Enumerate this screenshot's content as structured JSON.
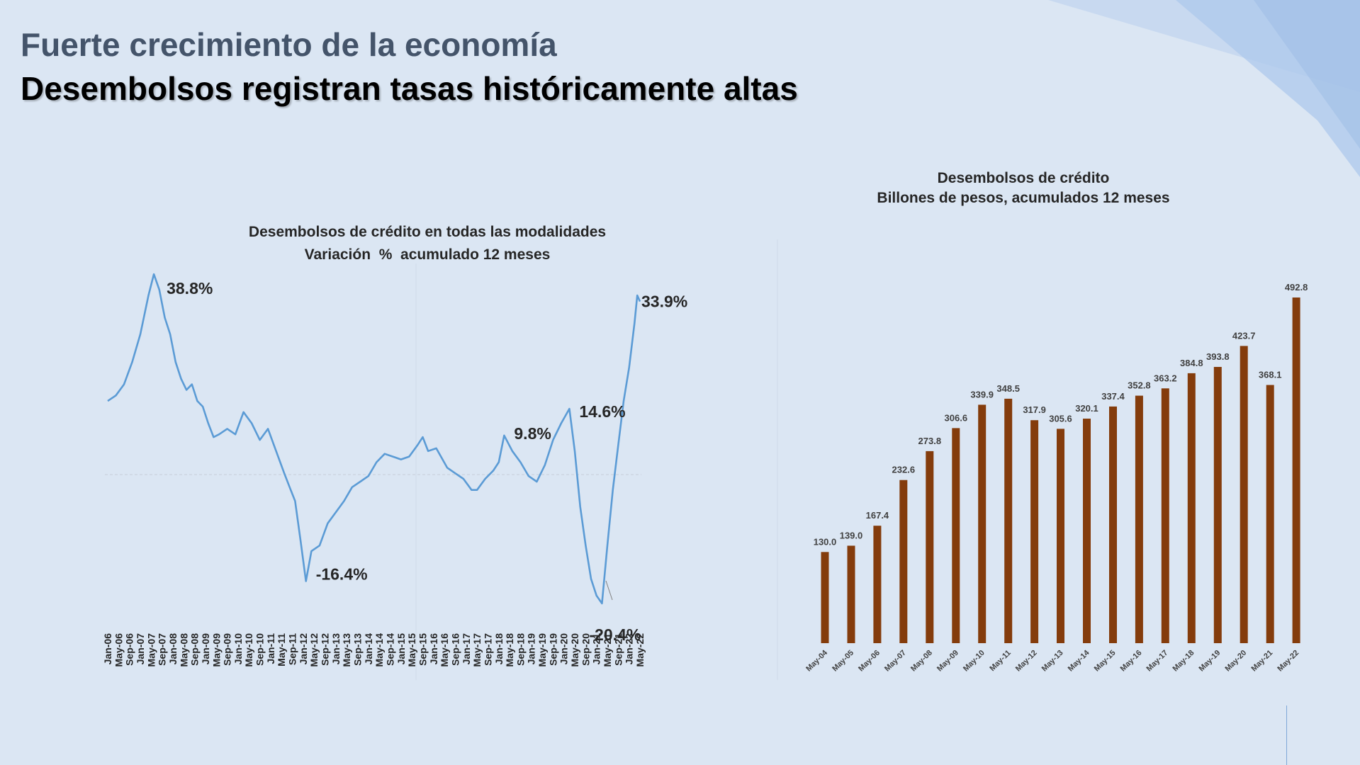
{
  "header": {
    "title": "Fuerte crecimiento de la economía",
    "subtitle": "Desembolsos registran tasas históricamente altas"
  },
  "colors": {
    "line": "#5b9bd5",
    "bar": "#843c0c",
    "title": "#44546a",
    "background": "#dbe6f3"
  },
  "chart_data": [
    {
      "type": "line",
      "title": "Desembolsos de crédito en todas las modalidades",
      "subtitle": "Variación  %  acumulado 12 meses",
      "x_start": "Jan-06",
      "x_end": "May-22",
      "x_ticks": [
        "Jan-06",
        "May-06",
        "Sep-06",
        "Jan-07",
        "May-07",
        "Sep-07",
        "Jan-08",
        "May-08",
        "Sep-08",
        "Jan-09",
        "May-09",
        "Sep-09",
        "Jan-10",
        "May-10",
        "Sep-10",
        "Jan-11",
        "May-11",
        "Sep-11",
        "Jan-12",
        "May-12",
        "Sep-12",
        "Jan-13",
        "May-13",
        "Sep-13",
        "Jan-14",
        "May-14",
        "Sep-14",
        "Jan-15",
        "May-15",
        "Sep-15",
        "Jan-16",
        "May-16",
        "Sep-16",
        "Jan-17",
        "May-17",
        "Sep-17",
        "Jan-18",
        "May-18",
        "Sep-18",
        "Jan-19",
        "May-19",
        "Sep-19",
        "Jan-20",
        "May-20",
        "Sep-20",
        "Jan-21",
        "May-21",
        "Sep-21",
        "Jan-22",
        "May-22"
      ],
      "ylim": [
        -25,
        42
      ],
      "grid": false,
      "legend": false,
      "series": [
        {
          "points": [
            [
              "Jan-06",
              16
            ],
            [
              "Apr-06",
              17
            ],
            [
              "Jul-06",
              19
            ],
            [
              "Oct-06",
              23
            ],
            [
              "Jan-07",
              28
            ],
            [
              "Apr-07",
              35
            ],
            [
              "Jun-07",
              38.8
            ],
            [
              "Aug-07",
              36
            ],
            [
              "Oct-07",
              31
            ],
            [
              "Dec-07",
              28
            ],
            [
              "Feb-08",
              23
            ],
            [
              "Apr-08",
              20
            ],
            [
              "Jun-08",
              18
            ],
            [
              "Aug-08",
              19
            ],
            [
              "Oct-08",
              16
            ],
            [
              "Dec-08",
              15
            ],
            [
              "Feb-09",
              12
            ],
            [
              "Apr-09",
              9.5
            ],
            [
              "Jun-09",
              10
            ],
            [
              "Sep-09",
              11
            ],
            [
              "Dec-09",
              10
            ],
            [
              "Mar-10",
              14
            ],
            [
              "Jun-10",
              12
            ],
            [
              "Sep-10",
              9
            ],
            [
              "Dec-10",
              11
            ],
            [
              "Mar-11",
              7
            ],
            [
              "Jun-11",
              3
            ],
            [
              "Aug-11",
              0.5
            ],
            [
              "Oct-11",
              -2
            ],
            [
              "Dec-11",
              -9
            ],
            [
              "Feb-12",
              -16.4
            ],
            [
              "Apr-12",
              -11
            ],
            [
              "Jul-12",
              -10
            ],
            [
              "Oct-12",
              -6
            ],
            [
              "Jan-13",
              -4
            ],
            [
              "Apr-13",
              -2
            ],
            [
              "Jul-13",
              0.5
            ],
            [
              "Oct-13",
              1.5
            ],
            [
              "Jan-14",
              2.5
            ],
            [
              "Apr-14",
              5
            ],
            [
              "Jul-14",
              6.5
            ],
            [
              "Oct-14",
              6
            ],
            [
              "Jan-15",
              5.5
            ],
            [
              "Apr-15",
              6
            ],
            [
              "Jul-15",
              8
            ],
            [
              "Sep-15",
              9.5
            ],
            [
              "Nov-15",
              7
            ],
            [
              "Feb-16",
              7.5
            ],
            [
              "Jun-16",
              4
            ],
            [
              "Sep-16",
              3
            ],
            [
              "Dec-16",
              2
            ],
            [
              "Mar-17",
              0
            ],
            [
              "May-17",
              0
            ],
            [
              "Aug-17",
              2
            ],
            [
              "Nov-17",
              3.5
            ],
            [
              "Jan-18",
              5
            ],
            [
              "Mar-18",
              9.8
            ],
            [
              "Jun-18",
              7
            ],
            [
              "Sep-18",
              5
            ],
            [
              "Dec-18",
              2.5
            ],
            [
              "Mar-19",
              1.5
            ],
            [
              "Jun-19",
              4.5
            ],
            [
              "Sep-19",
              9
            ],
            [
              "Dec-19",
              12
            ],
            [
              "Mar-20",
              14.6
            ],
            [
              "May-20",
              7
            ],
            [
              "Jul-20",
              -3
            ],
            [
              "Sep-20",
              -10
            ],
            [
              "Nov-20",
              -16
            ],
            [
              "Jan-21",
              -19
            ],
            [
              "Mar-21",
              -20.4
            ],
            [
              "May-21",
              -10
            ],
            [
              "Jul-21",
              0
            ],
            [
              "Sep-21",
              8
            ],
            [
              "Nov-21",
              16
            ],
            [
              "Jan-22",
              22
            ],
            [
              "Mar-22",
              30
            ],
            [
              "Apr-22",
              35
            ],
            [
              "May-22",
              33.9
            ]
          ]
        }
      ],
      "annotations": [
        {
          "text": "38.8%",
          "at": "Jun-07",
          "value": 38.8
        },
        {
          "text": "-16.4%",
          "at": "Feb-12",
          "value": -16.4
        },
        {
          "text": "9.8%",
          "at": "Mar-18",
          "value": 9.8
        },
        {
          "text": "14.6%",
          "at": "Mar-20",
          "value": 14.6
        },
        {
          "text": "-20.4%",
          "at": "Mar-21",
          "value": -20.4
        },
        {
          "text": "33.9%",
          "at": "May-22",
          "value": 33.9
        }
      ]
    },
    {
      "type": "bar",
      "title": "Desembolsos de crédito",
      "subtitle": "Billones de pesos, acumulados 12 meses",
      "categories": [
        "May-04",
        "May-05",
        "May-06",
        "May-07",
        "May-08",
        "May-09",
        "May-10",
        "May-11",
        "May-12",
        "May-13",
        "May-14",
        "May-15",
        "May-16",
        "May-17",
        "May-18",
        "May-19",
        "May-20",
        "May-21",
        "May-22"
      ],
      "values": [
        130.0,
        139.0,
        167.4,
        232.6,
        273.8,
        306.6,
        339.9,
        348.5,
        317.9,
        305.6,
        320.1,
        337.4,
        352.8,
        363.2,
        384.8,
        393.8,
        423.7,
        368.1,
        492.8
      ],
      "value_labels": [
        "130.0",
        "139.0",
        "167.4",
        "232.6",
        "273.8",
        "306.6",
        "339.9",
        "348.5",
        "317.9",
        "305.6",
        "320.1",
        "337.4",
        "352.8",
        "363.2",
        "384.8",
        "393.8",
        "423.7",
        "368.1",
        "492.8"
      ],
      "ylim": [
        0,
        492.8
      ],
      "grid": false,
      "legend": false
    }
  ]
}
